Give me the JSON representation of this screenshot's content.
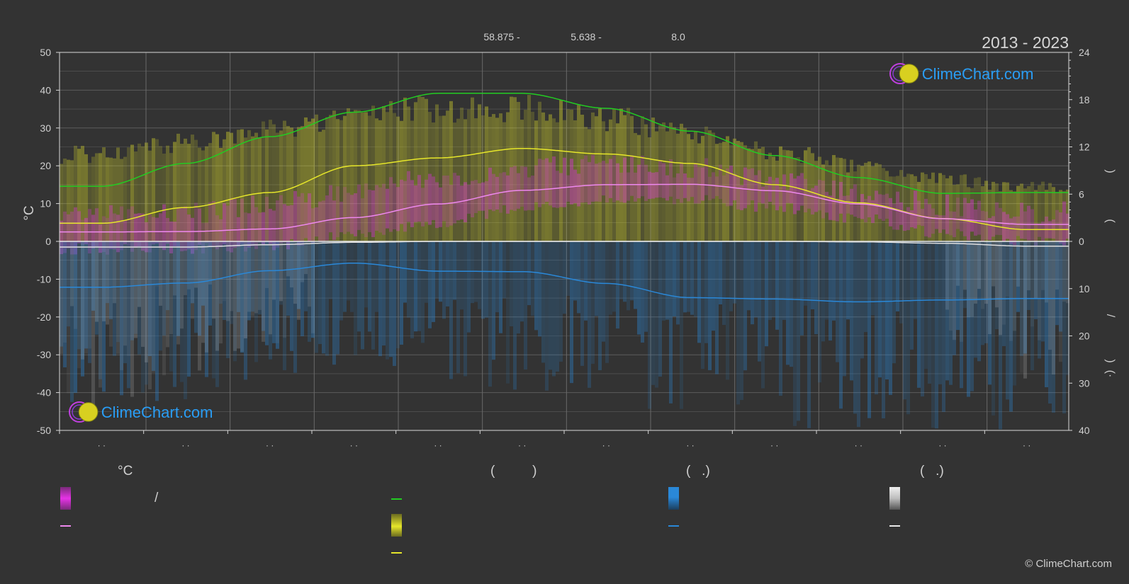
{
  "header": {
    "year_range": "2013 - 2023",
    "coords": [
      "58.875 -",
      "5.638 -",
      "8.0"
    ]
  },
  "watermark": {
    "brand": "ClimeChart.com"
  },
  "axes": {
    "left_unit": "°C",
    "left_ticks": [
      50,
      40,
      30,
      20,
      10,
      0,
      -10,
      -20,
      -30,
      -40,
      -50
    ],
    "right_top_ticks": [
      24,
      18,
      12,
      6,
      0
    ],
    "right_bottom_ticks": [
      10,
      20,
      30,
      40
    ],
    "right_labels": [
      ")",
      "(",
      "/",
      ")",
      "(·"
    ],
    "month_tick_label": "· ·"
  },
  "legend": {
    "col1_header": "°C",
    "col2_header": "(          )",
    "col3_header": "(   .)",
    "col4_header": "(   .)",
    "slash": "/"
  },
  "colors": {
    "background": "#333333",
    "grid": "#5c5c5c",
    "day_length": "#22cc22",
    "sunshine": "#e6e62a",
    "temp_band": "#e633e6",
    "temp_mean": "#ee88ee",
    "rain": "#2a88d8",
    "snow": "#e0e0e0",
    "brand": "#2a9df4"
  },
  "copyright": "© ClimeChart.com",
  "chart_data": {
    "type": "line",
    "x": [
      "Jan",
      "Feb",
      "Mar",
      "Apr",
      "May",
      "Jun",
      "Jul",
      "Aug",
      "Sep",
      "Oct",
      "Nov",
      "Dec"
    ],
    "ylim_left": [
      -50,
      50
    ],
    "ylim_right_top": [
      0,
      24
    ],
    "ylim_right_bottom": [
      0,
      40
    ],
    "series": [
      {
        "name": "",
        "axis": "right_top",
        "values": [
          7.0,
          9.9,
          13.3,
          16.4,
          18.8,
          18.8,
          16.9,
          14.0,
          10.9,
          8.1,
          6.1,
          6.2
        ]
      },
      {
        "name": "",
        "axis": "right_top",
        "values": [
          2.3,
          4.3,
          6.2,
          9.6,
          10.6,
          11.8,
          11.1,
          9.9,
          7.2,
          4.9,
          2.9,
          1.5
        ]
      },
      {
        "name": "",
        "axis": "left",
        "values": [
          2.5,
          2.6,
          3.3,
          6.3,
          9.9,
          13.5,
          15.0,
          15.1,
          13.4,
          9.9,
          6.0,
          4.5
        ]
      },
      {
        "name": "",
        "axis": "right_bottom",
        "values": [
          9.7,
          8.8,
          6.2,
          4.6,
          6.3,
          6.4,
          8.9,
          11.9,
          12.2,
          12.8,
          12.4,
          12.1
        ]
      },
      {
        "name": "",
        "axis": "right_bottom",
        "values": [
          1.2,
          1.2,
          0.7,
          0.2,
          0,
          0,
          0,
          0,
          0,
          0.1,
          0.4,
          1.0
        ]
      }
    ],
    "bands": {
      "temp_max": [
        6,
        7,
        9,
        13,
        16,
        19,
        20,
        19,
        16,
        12,
        9,
        7
      ],
      "temp_min": [
        -2,
        -2,
        -1,
        2,
        5,
        9,
        11,
        11,
        9,
        6,
        2,
        0
      ],
      "sunshine_envelope": [
        12,
        13.5,
        15.5,
        17.5,
        18.2,
        18.5,
        17,
        15,
        12.5,
        10.5,
        8.5,
        7.5
      ],
      "rain_depth": [
        35,
        33,
        28,
        25,
        28,
        30,
        32,
        36,
        38,
        38,
        38,
        38
      ]
    }
  }
}
